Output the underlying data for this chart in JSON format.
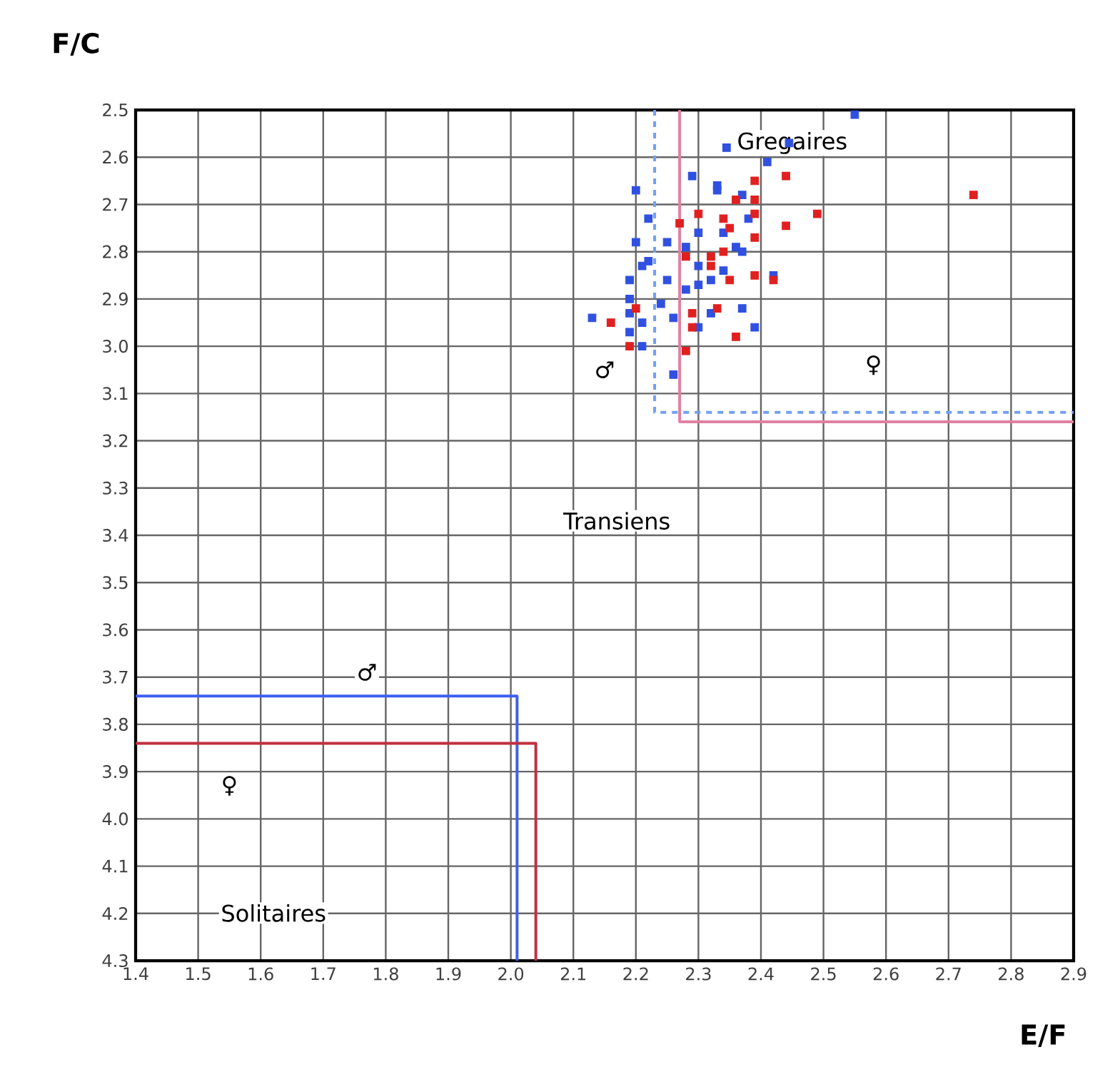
{
  "chart_data": {
    "type": "scatter",
    "xlabel": "E/F",
    "ylabel": "F/C",
    "xlim": [
      1.4,
      2.9
    ],
    "ylim": [
      4.3,
      2.5
    ],
    "xticks": [
      1.4,
      1.5,
      1.6,
      1.7,
      1.8,
      1.9,
      {
        "value": 2.0,
        "label": "2.0"
      },
      2.1,
      2.2,
      2.3,
      2.4,
      2.5,
      2.6,
      2.7,
      2.8,
      2.9
    ],
    "yticks": [
      2.5,
      2.6,
      2.7,
      2.8,
      2.9,
      {
        "value": 3.0,
        "label": "3.0"
      },
      3.1,
      3.2,
      3.3,
      3.4,
      3.5,
      3.6,
      3.7,
      3.8,
      3.9,
      {
        "value": 4.0,
        "label": "4.0"
      },
      4.1,
      4.2,
      4.3
    ],
    "grid": true,
    "marker": "square",
    "series": [
      {
        "color": "#3050e0",
        "x": [
          2.55,
          2.345,
          2.445,
          2.41,
          2.29,
          2.33,
          2.33,
          2.2,
          2.37,
          2.22,
          2.38,
          2.2,
          2.25,
          2.3,
          2.28,
          2.22,
          2.21,
          2.34,
          2.36,
          2.37,
          2.3,
          2.32,
          2.34,
          2.19,
          2.25,
          2.28,
          2.3,
          2.42,
          2.19,
          2.24,
          2.19,
          2.21,
          2.13,
          2.26,
          2.32,
          2.37,
          2.3,
          2.39,
          2.19,
          2.21,
          2.26
        ],
        "values": [
          2.51,
          2.58,
          2.57,
          2.61,
          2.64,
          2.66,
          2.67,
          2.67,
          2.68,
          2.73,
          2.73,
          2.78,
          2.78,
          2.76,
          2.79,
          2.82,
          2.83,
          2.76,
          2.79,
          2.8,
          2.83,
          2.86,
          2.84,
          2.86,
          2.86,
          2.88,
          2.87,
          2.85,
          2.9,
          2.91,
          2.93,
          2.95,
          2.94,
          2.94,
          2.93,
          2.92,
          2.96,
          2.96,
          2.97,
          3.0,
          3.06
        ]
      },
      {
        "color": "#e02020",
        "x": [
          2.44,
          2.39,
          2.36,
          2.39,
          2.74,
          2.49,
          2.3,
          2.27,
          2.34,
          2.39,
          2.44,
          2.35,
          2.39,
          2.28,
          2.32,
          2.34,
          2.32,
          2.35,
          2.39,
          2.42,
          2.2,
          2.16,
          2.29,
          2.33,
          2.36,
          2.19,
          2.28,
          2.29
        ],
        "values": [
          2.64,
          2.65,
          2.69,
          2.69,
          2.68,
          2.72,
          2.72,
          2.74,
          2.73,
          2.72,
          2.745,
          2.75,
          2.77,
          2.81,
          2.81,
          2.8,
          2.83,
          2.86,
          2.85,
          2.86,
          2.92,
          2.95,
          2.93,
          2.92,
          2.98,
          3.0,
          3.01,
          2.96
        ]
      },
      {
        "type": "line",
        "marker": "none",
        "color": "#e080a0",
        "x": [
          2.27,
          2.27,
          2.9
        ],
        "values": [
          2.5,
          3.16,
          3.16
        ]
      },
      {
        "type": "line",
        "marker": "none",
        "color": "#70a0f0",
        "line_style": "dashed",
        "x": [
          2.23,
          2.23,
          2.9
        ],
        "values": [
          2.5,
          3.14,
          3.14
        ]
      },
      {
        "type": "line",
        "marker": "none",
        "color": "#4060f0",
        "x": [
          1.4,
          2.01,
          2.01
        ],
        "values": [
          3.74,
          3.74,
          4.3
        ]
      },
      {
        "type": "line",
        "marker": "none",
        "color": "#c03040",
        "x": [
          1.4,
          2.04,
          2.04
        ],
        "values": [
          3.84,
          3.84,
          4.3
        ]
      }
    ],
    "annotations": [
      {
        "text": "Gregaires",
        "x": 2.45,
        "y": 2.57
      },
      "Transiens",
      "Solitaires",
      {
        "text": "♂",
        "x": 2.15,
        "y": 3.05
      },
      {
        "text": "♀",
        "x": 2.58,
        "y": 3.04
      },
      {
        "text": "♂",
        "x": 1.77,
        "y": 3.69
      },
      {
        "text": "♀",
        "x": 1.55,
        "y": 3.93
      }
    ]
  }
}
